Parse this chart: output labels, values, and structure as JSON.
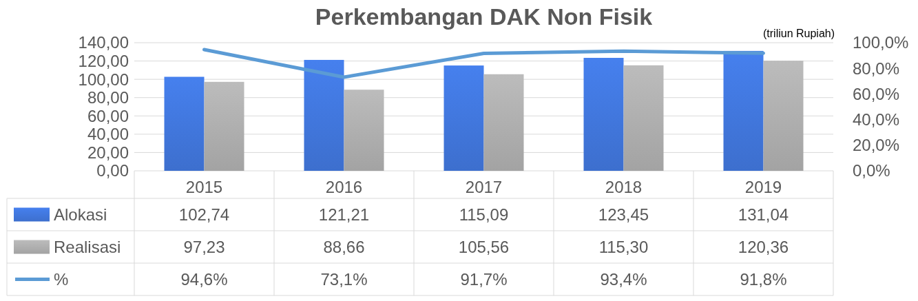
{
  "chart_data": {
    "type": "bar",
    "title": "Perkembangan DAK Non Fisik",
    "annotations": [
      "(triliun Rupiah)"
    ],
    "categories": [
      "2015",
      "2016",
      "2017",
      "2018",
      "2019"
    ],
    "series": [
      {
        "name": "Alokasi",
        "color": "#3d6fce",
        "values": [
          102.74,
          121.21,
          115.09,
          123.45,
          131.04
        ],
        "value_labels": [
          "102,74",
          "121,21",
          "115,09",
          "123,45",
          "131,04"
        ]
      },
      {
        "name": "Realisasi",
        "color": "#a3a3a3",
        "values": [
          97.23,
          88.66,
          105.56,
          115.3,
          120.36
        ],
        "value_labels": [
          "97,23",
          "88,66",
          "105,56",
          "115,30",
          "120,36"
        ]
      },
      {
        "name": "%",
        "type": "line",
        "axis": "y2",
        "color": "#5b9bd5",
        "values": [
          94.6,
          73.1,
          91.7,
          93.4,
          91.8
        ],
        "value_labels": [
          "94,6%",
          "73,1%",
          "91,7%",
          "93,4%",
          "91,8%"
        ]
      }
    ],
    "ylim": [
      0,
      140
    ],
    "yticks": [
      {
        "value": 0,
        "label": "0,00"
      },
      {
        "value": 20,
        "label": "20,00"
      },
      {
        "value": 40,
        "label": "40,00"
      },
      {
        "value": 60,
        "label": "60,00"
      },
      {
        "value": 80,
        "label": "80,00"
      },
      {
        "value": 100,
        "label": "100,00"
      },
      {
        "value": 120,
        "label": "120,00"
      },
      {
        "value": 140,
        "label": "140,00"
      }
    ],
    "y2lim": [
      0,
      100
    ],
    "y2ticks": [
      {
        "value": 0,
        "label": "0,0%"
      },
      {
        "value": 20,
        "label": "20,0%"
      },
      {
        "value": 40,
        "label": "40,0%"
      },
      {
        "value": 60,
        "label": "60,0%"
      },
      {
        "value": 80,
        "label": "80,0%"
      },
      {
        "value": 100,
        "label": "100,0%"
      }
    ],
    "grid": "y",
    "legend": "bottom",
    "line_style": "solid",
    "marker": "none"
  }
}
